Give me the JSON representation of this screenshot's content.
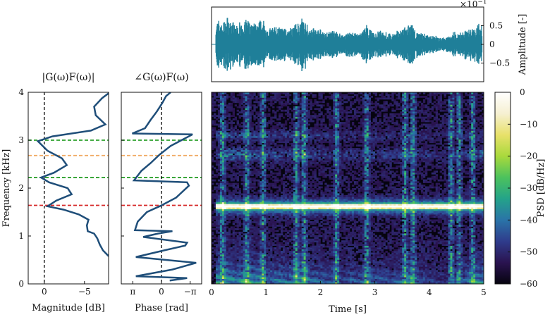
{
  "chart_data": [
    {
      "id": "magnitude",
      "type": "line",
      "title": "|G(ω)F(ω)|",
      "xlabel": "Magnitude [dB]",
      "ylabel": "Frequency [kHz]",
      "xlim": [
        2,
        -8
      ],
      "ylim": [
        0,
        4
      ],
      "xticks": [
        {
          "v": 0,
          "label": "0"
        },
        {
          "v": -5,
          "label": "−5"
        }
      ],
      "yticks": [
        {
          "v": 0,
          "label": "0"
        },
        {
          "v": 1,
          "label": "1"
        },
        {
          "v": 2,
          "label": "2"
        },
        {
          "v": 3,
          "label": "3"
        },
        {
          "v": 4,
          "label": "4"
        }
      ],
      "series": [
        {
          "color": "#1f4e79",
          "points": [
            [
              -8.0,
              0.58
            ],
            [
              -7.3,
              0.7
            ],
            [
              -6.9,
              0.82
            ],
            [
              -6.6,
              0.95
            ],
            [
              -6.2,
              1.05
            ],
            [
              -5.4,
              1.1
            ],
            [
              -5.3,
              1.22
            ],
            [
              -5.5,
              1.34
            ],
            [
              -4.3,
              1.45
            ],
            [
              -2.4,
              1.55
            ],
            [
              -0.4,
              1.62
            ],
            [
              -1.5,
              1.74
            ],
            [
              -3.4,
              1.87
            ],
            [
              -2.9,
              2.0
            ],
            [
              -0.6,
              2.12
            ],
            [
              0.4,
              2.22
            ],
            [
              -1.2,
              2.32
            ],
            [
              -2.8,
              2.48
            ],
            [
              -2.2,
              2.62
            ],
            [
              -0.4,
              2.78
            ],
            [
              0.8,
              2.98
            ],
            [
              -1.0,
              3.08
            ],
            [
              -5.8,
              3.2
            ],
            [
              -7.6,
              3.33
            ],
            [
              -6.4,
              3.52
            ],
            [
              -6.2,
              3.7
            ],
            [
              -7.2,
              3.88
            ],
            [
              -8.0,
              3.98
            ]
          ]
        }
      ],
      "reference_lines": {
        "vertical": [
          {
            "v": 0,
            "color": "#000000"
          }
        ],
        "horizontal": [
          {
            "v": 3.0,
            "color": "#2ca02c"
          },
          {
            "v": 2.68,
            "color": "#f0a860"
          },
          {
            "v": 2.22,
            "color": "#2ca02c"
          },
          {
            "v": 1.64,
            "color": "#d62728"
          }
        ]
      }
    },
    {
      "id": "phase",
      "type": "line",
      "title": "∠G(ω)F(ω)",
      "xlabel": "Phase [rad]",
      "ylim": [
        0,
        4
      ],
      "xlim": [
        4.4,
        -4.4
      ],
      "xticks": [
        {
          "v": 3.14159,
          "label": "π"
        },
        {
          "v": 0,
          "label": "0"
        },
        {
          "v": -3.14159,
          "label": "−π"
        }
      ],
      "series": [
        {
          "color": "#1f4e79",
          "points": [
            [
              -0.9,
              0.07
            ],
            [
              -2.8,
              0.12
            ],
            [
              2.8,
              0.16
            ],
            [
              -1.2,
              0.3
            ],
            [
              -3.8,
              0.44
            ],
            [
              2.8,
              0.56
            ],
            [
              -0.3,
              0.7
            ],
            [
              -2.6,
              0.8
            ],
            [
              -2.8,
              0.86
            ],
            [
              2.0,
              0.98
            ],
            [
              0.4,
              1.05
            ],
            [
              -1.2,
              1.1
            ],
            [
              2.9,
              1.12
            ],
            [
              2.6,
              1.3
            ],
            [
              1.6,
              1.5
            ],
            [
              0.1,
              1.63
            ],
            [
              -1.6,
              1.8
            ],
            [
              -3.0,
              2.05
            ],
            [
              -2.8,
              2.12
            ],
            [
              3.0,
              2.16
            ],
            [
              2.2,
              2.36
            ],
            [
              1.2,
              2.52
            ],
            [
              0.2,
              2.7
            ],
            [
              -1.0,
              2.88
            ],
            [
              -3.4,
              3.12
            ],
            [
              3.2,
              3.14
            ],
            [
              1.8,
              3.25
            ],
            [
              1.2,
              3.42
            ],
            [
              0.5,
              3.6
            ],
            [
              -0.1,
              3.78
            ],
            [
              -0.5,
              3.92
            ],
            [
              -1.0,
              4.0
            ]
          ]
        }
      ],
      "reference_lines": {
        "vertical": [
          {
            "v": 0,
            "color": "#000000"
          }
        ],
        "horizontal": [
          {
            "v": 3.0,
            "color": "#2ca02c"
          },
          {
            "v": 2.68,
            "color": "#f0a860"
          },
          {
            "v": 2.22,
            "color": "#2ca02c"
          },
          {
            "v": 1.64,
            "color": "#d62728"
          }
        ]
      }
    },
    {
      "id": "waveform",
      "type": "area",
      "ylabel": "Amplitude [-]",
      "scale_label": "×10",
      "scale_exponent": "−1",
      "xlim": [
        0,
        5
      ],
      "ylim": [
        -1.0,
        1.0
      ],
      "yticks": [
        {
          "v": 0.5,
          "label": "0.5"
        },
        {
          "v": 0,
          "label": "0"
        },
        {
          "v": -0.5,
          "label": "−0.5"
        }
      ],
      "color": "#1f7f99",
      "envelope": [
        [
          0.08,
          0.75
        ],
        [
          0.2,
          0.65
        ],
        [
          0.3,
          0.8
        ],
        [
          0.45,
          0.55
        ],
        [
          0.6,
          0.75
        ],
        [
          0.8,
          0.6
        ],
        [
          0.95,
          0.7
        ],
        [
          1.05,
          0.45
        ],
        [
          1.2,
          0.55
        ],
        [
          1.4,
          0.45
        ],
        [
          1.6,
          0.65
        ],
        [
          1.7,
          0.8
        ],
        [
          1.8,
          0.5
        ],
        [
          1.95,
          0.45
        ],
        [
          2.1,
          0.35
        ],
        [
          2.25,
          0.4
        ],
        [
          2.4,
          0.3
        ],
        [
          2.55,
          0.4
        ],
        [
          2.7,
          0.3
        ],
        [
          2.85,
          0.55
        ],
        [
          3.0,
          0.35
        ],
        [
          3.15,
          0.4
        ],
        [
          3.3,
          0.3
        ],
        [
          3.5,
          0.45
        ],
        [
          3.65,
          0.6
        ],
        [
          3.8,
          0.35
        ],
        [
          4.0,
          0.3
        ],
        [
          4.15,
          0.22
        ],
        [
          4.3,
          0.2
        ],
        [
          4.45,
          0.35
        ],
        [
          4.6,
          0.35
        ],
        [
          4.8,
          0.55
        ],
        [
          4.95,
          0.6
        ]
      ]
    },
    {
      "id": "spectrogram",
      "type": "heatmap",
      "xlabel": "Time [s]",
      "xlim": [
        0,
        5
      ],
      "ylim": [
        0,
        4
      ],
      "xticks": [
        {
          "v": 0,
          "label": "0"
        },
        {
          "v": 1,
          "label": "1"
        },
        {
          "v": 2,
          "label": "2"
        },
        {
          "v": 3,
          "label": "3"
        },
        {
          "v": 4,
          "label": "4"
        },
        {
          "v": 5,
          "label": "5"
        }
      ],
      "band_khz": 1.62,
      "colorbar": {
        "label": "PSD [dB/Hz]",
        "range": [
          -60,
          0
        ],
        "ticks": [
          {
            "v": 0,
            "label": "0"
          },
          {
            "v": -10,
            "label": "−10"
          },
          {
            "v": -20,
            "label": "−20"
          },
          {
            "v": -30,
            "label": "−30"
          },
          {
            "v": -40,
            "label": "−40"
          },
          {
            "v": -50,
            "label": "−50"
          },
          {
            "v": -60,
            "label": "−60"
          }
        ],
        "colors": [
          "#06040f",
          "#2a1350",
          "#2f3c8c",
          "#2a74a8",
          "#24a389",
          "#4cc25d",
          "#a9d93c",
          "#e8e16a",
          "#f6f0d2",
          "#ffffff"
        ]
      }
    }
  ]
}
